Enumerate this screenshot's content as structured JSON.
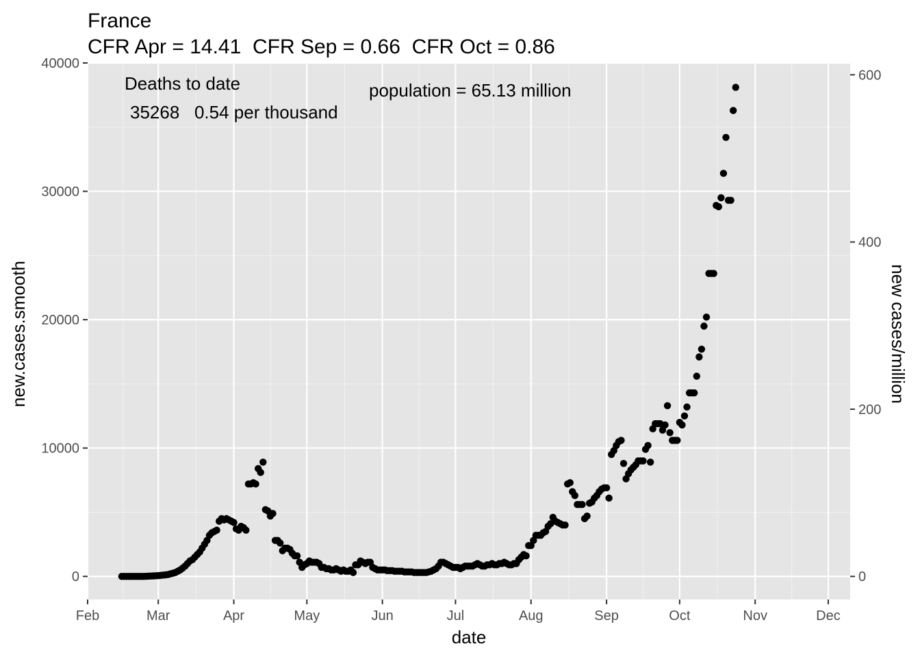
{
  "chart_data": {
    "type": "scatter",
    "title": "France",
    "subtitle": "CFR Apr = 14.41  CFR Sep = 0.66  CFR Oct = 0.86",
    "xlabel": "date",
    "ylabel": "new.cases.smooth",
    "y2label": "new cases/million",
    "annotations": {
      "deaths_heading": "Deaths to date",
      "deaths_values": "35268   0.54 per thousand",
      "population": "population = 65.13 million"
    },
    "x_axis": {
      "start": "2020-02-01",
      "end": "2020-12-10",
      "ticks": [
        "Feb",
        "Mar",
        "Apr",
        "May",
        "Jun",
        "Jul",
        "Aug",
        "Sep",
        "Oct",
        "Nov",
        "Dec"
      ],
      "tick_dates": [
        "2020-02-01",
        "2020-03-01",
        "2020-04-01",
        "2020-05-01",
        "2020-06-01",
        "2020-07-01",
        "2020-08-01",
        "2020-09-01",
        "2020-10-01",
        "2020-11-01",
        "2020-12-01"
      ]
    },
    "ylim": [
      -1800,
      40000
    ],
    "yticks": [
      0,
      10000,
      20000,
      30000,
      40000
    ],
    "y2ticks": [
      0,
      200,
      400,
      600
    ],
    "y2_conversion_per_million": 65.13,
    "grid": true,
    "background_color": "#e5e5e5",
    "point_color": "#000000",
    "points": [
      [
        "2020-02-15",
        0
      ],
      [
        "2020-02-16",
        0
      ],
      [
        "2020-02-17",
        0
      ],
      [
        "2020-02-18",
        0
      ],
      [
        "2020-02-19",
        0
      ],
      [
        "2020-02-20",
        0
      ],
      [
        "2020-02-21",
        0
      ],
      [
        "2020-02-22",
        0
      ],
      [
        "2020-02-23",
        0
      ],
      [
        "2020-02-24",
        0
      ],
      [
        "2020-02-25",
        10
      ],
      [
        "2020-02-26",
        20
      ],
      [
        "2020-02-27",
        30
      ],
      [
        "2020-02-28",
        40
      ],
      [
        "2020-02-29",
        50
      ],
      [
        "2020-03-01",
        60
      ],
      [
        "2020-03-02",
        80
      ],
      [
        "2020-03-03",
        100
      ],
      [
        "2020-03-04",
        120
      ],
      [
        "2020-03-05",
        150
      ],
      [
        "2020-03-06",
        200
      ],
      [
        "2020-03-07",
        250
      ],
      [
        "2020-03-08",
        300
      ],
      [
        "2020-03-09",
        400
      ],
      [
        "2020-03-10",
        500
      ],
      [
        "2020-03-11",
        650
      ],
      [
        "2020-03-12",
        800
      ],
      [
        "2020-03-13",
        1000
      ],
      [
        "2020-03-14",
        1200
      ],
      [
        "2020-03-15",
        1300
      ],
      [
        "2020-03-16",
        1500
      ],
      [
        "2020-03-17",
        1700
      ],
      [
        "2020-03-18",
        1900
      ],
      [
        "2020-03-19",
        2200
      ],
      [
        "2020-03-20",
        2500
      ],
      [
        "2020-03-21",
        2800
      ],
      [
        "2020-03-22",
        3200
      ],
      [
        "2020-03-23",
        3400
      ],
      [
        "2020-03-24",
        3500
      ],
      [
        "2020-03-25",
        3600
      ],
      [
        "2020-03-26",
        4300
      ],
      [
        "2020-03-27",
        4500
      ],
      [
        "2020-03-28",
        4400
      ],
      [
        "2020-03-29",
        4500
      ],
      [
        "2020-03-30",
        4400
      ],
      [
        "2020-03-31",
        4300
      ],
      [
        "2020-04-01",
        4200
      ],
      [
        "2020-04-02",
        3700
      ],
      [
        "2020-04-03",
        3600
      ],
      [
        "2020-04-04",
        3900
      ],
      [
        "2020-04-05",
        3800
      ],
      [
        "2020-04-06",
        3600
      ],
      [
        "2020-04-07",
        7200
      ],
      [
        "2020-04-08",
        7200
      ],
      [
        "2020-04-09",
        7300
      ],
      [
        "2020-04-10",
        7200
      ],
      [
        "2020-04-11",
        8400
      ],
      [
        "2020-04-12",
        8100
      ],
      [
        "2020-04-13",
        8900
      ],
      [
        "2020-04-14",
        5200
      ],
      [
        "2020-04-15",
        5100
      ],
      [
        "2020-04-16",
        4700
      ],
      [
        "2020-04-17",
        4900
      ],
      [
        "2020-04-18",
        2800
      ],
      [
        "2020-04-19",
        2800
      ],
      [
        "2020-04-20",
        2600
      ],
      [
        "2020-04-21",
        2000
      ],
      [
        "2020-04-22",
        2200
      ],
      [
        "2020-04-23",
        2200
      ],
      [
        "2020-04-24",
        2100
      ],
      [
        "2020-04-25",
        1800
      ],
      [
        "2020-04-26",
        1600
      ],
      [
        "2020-04-27",
        1600
      ],
      [
        "2020-04-28",
        1100
      ],
      [
        "2020-04-29",
        700
      ],
      [
        "2020-04-30",
        900
      ],
      [
        "2020-05-01",
        1000
      ],
      [
        "2020-05-02",
        1200
      ],
      [
        "2020-05-03",
        1100
      ],
      [
        "2020-05-04",
        1100
      ],
      [
        "2020-05-05",
        1100
      ],
      [
        "2020-05-06",
        1000
      ],
      [
        "2020-05-07",
        700
      ],
      [
        "2020-05-08",
        700
      ],
      [
        "2020-05-09",
        600
      ],
      [
        "2020-05-10",
        600
      ],
      [
        "2020-05-11",
        500
      ],
      [
        "2020-05-12",
        500
      ],
      [
        "2020-05-13",
        600
      ],
      [
        "2020-05-14",
        500
      ],
      [
        "2020-05-15",
        400
      ],
      [
        "2020-05-16",
        500
      ],
      [
        "2020-05-17",
        400
      ],
      [
        "2020-05-18",
        400
      ],
      [
        "2020-05-19",
        500
      ],
      [
        "2020-05-20",
        300
      ],
      [
        "2020-05-21",
        900
      ],
      [
        "2020-05-22",
        900
      ],
      [
        "2020-05-23",
        1200
      ],
      [
        "2020-05-24",
        1100
      ],
      [
        "2020-05-25",
        1000
      ],
      [
        "2020-05-26",
        1100
      ],
      [
        "2020-05-27",
        1100
      ],
      [
        "2020-05-28",
        700
      ],
      [
        "2020-05-29",
        600
      ],
      [
        "2020-05-30",
        500
      ],
      [
        "2020-05-31",
        500
      ],
      [
        "2020-06-01",
        500
      ],
      [
        "2020-06-02",
        500
      ],
      [
        "2020-06-03",
        450
      ],
      [
        "2020-06-04",
        450
      ],
      [
        "2020-06-05",
        450
      ],
      [
        "2020-06-06",
        400
      ],
      [
        "2020-06-07",
        400
      ],
      [
        "2020-06-08",
        400
      ],
      [
        "2020-06-09",
        400
      ],
      [
        "2020-06-10",
        350
      ],
      [
        "2020-06-11",
        350
      ],
      [
        "2020-06-12",
        350
      ],
      [
        "2020-06-13",
        350
      ],
      [
        "2020-06-14",
        300
      ],
      [
        "2020-06-15",
        300
      ],
      [
        "2020-06-16",
        300
      ],
      [
        "2020-06-17",
        300
      ],
      [
        "2020-06-18",
        300
      ],
      [
        "2020-06-19",
        300
      ],
      [
        "2020-06-20",
        350
      ],
      [
        "2020-06-21",
        400
      ],
      [
        "2020-06-22",
        500
      ],
      [
        "2020-06-23",
        600
      ],
      [
        "2020-06-24",
        800
      ],
      [
        "2020-06-25",
        1100
      ],
      [
        "2020-06-26",
        1100
      ],
      [
        "2020-06-27",
        1000
      ],
      [
        "2020-06-28",
        900
      ],
      [
        "2020-06-29",
        800
      ],
      [
        "2020-06-30",
        700
      ],
      [
        "2020-07-01",
        700
      ],
      [
        "2020-07-02",
        700
      ],
      [
        "2020-07-03",
        600
      ],
      [
        "2020-07-04",
        700
      ],
      [
        "2020-07-05",
        800
      ],
      [
        "2020-07-06",
        800
      ],
      [
        "2020-07-07",
        800
      ],
      [
        "2020-07-08",
        800
      ],
      [
        "2020-07-09",
        900
      ],
      [
        "2020-07-10",
        1000
      ],
      [
        "2020-07-11",
        900
      ],
      [
        "2020-07-12",
        800
      ],
      [
        "2020-07-13",
        800
      ],
      [
        "2020-07-14",
        900
      ],
      [
        "2020-07-15",
        900
      ],
      [
        "2020-07-16",
        1000
      ],
      [
        "2020-07-17",
        900
      ],
      [
        "2020-07-18",
        900
      ],
      [
        "2020-07-19",
        1000
      ],
      [
        "2020-07-20",
        1000
      ],
      [
        "2020-07-21",
        1100
      ],
      [
        "2020-07-22",
        1000
      ],
      [
        "2020-07-23",
        900
      ],
      [
        "2020-07-24",
        900
      ],
      [
        "2020-07-25",
        1000
      ],
      [
        "2020-07-26",
        1000
      ],
      [
        "2020-07-27",
        1300
      ],
      [
        "2020-07-28",
        1500
      ],
      [
        "2020-07-29",
        1700
      ],
      [
        "2020-07-30",
        1600
      ],
      [
        "2020-07-31",
        2400
      ],
      [
        "2020-08-01",
        2400
      ],
      [
        "2020-08-02",
        2800
      ],
      [
        "2020-08-03",
        3200
      ],
      [
        "2020-08-04",
        3200
      ],
      [
        "2020-08-05",
        3200
      ],
      [
        "2020-08-06",
        3400
      ],
      [
        "2020-08-07",
        3500
      ],
      [
        "2020-08-08",
        3900
      ],
      [
        "2020-08-09",
        4100
      ],
      [
        "2020-08-10",
        4600
      ],
      [
        "2020-08-11",
        4300
      ],
      [
        "2020-08-12",
        4200
      ],
      [
        "2020-08-13",
        4100
      ],
      [
        "2020-08-14",
        4000
      ],
      [
        "2020-08-15",
        4000
      ],
      [
        "2020-08-16",
        7200
      ],
      [
        "2020-08-17",
        7300
      ],
      [
        "2020-08-18",
        6600
      ],
      [
        "2020-08-19",
        6300
      ],
      [
        "2020-08-20",
        5600
      ],
      [
        "2020-08-21",
        5600
      ],
      [
        "2020-08-22",
        5600
      ],
      [
        "2020-08-23",
        4500
      ],
      [
        "2020-08-24",
        4700
      ],
      [
        "2020-08-25",
        5700
      ],
      [
        "2020-08-26",
        5800
      ],
      [
        "2020-08-27",
        6100
      ],
      [
        "2020-08-28",
        6300
      ],
      [
        "2020-08-29",
        6600
      ],
      [
        "2020-08-30",
        6800
      ],
      [
        "2020-08-31",
        6900
      ],
      [
        "2020-09-01",
        6900
      ],
      [
        "2020-09-02",
        6100
      ],
      [
        "2020-09-03",
        9500
      ],
      [
        "2020-09-04",
        9800
      ],
      [
        "2020-09-05",
        10200
      ],
      [
        "2020-09-06",
        10500
      ],
      [
        "2020-09-07",
        10600
      ],
      [
        "2020-09-08",
        8800
      ],
      [
        "2020-09-09",
        7600
      ],
      [
        "2020-09-10",
        8000
      ],
      [
        "2020-09-11",
        8300
      ],
      [
        "2020-09-12",
        8500
      ],
      [
        "2020-09-13",
        8700
      ],
      [
        "2020-09-14",
        9000
      ],
      [
        "2020-09-15",
        9000
      ],
      [
        "2020-09-16",
        9000
      ],
      [
        "2020-09-17",
        9900
      ],
      [
        "2020-09-18",
        10200
      ],
      [
        "2020-09-19",
        8900
      ],
      [
        "2020-09-20",
        11500
      ],
      [
        "2020-09-21",
        11900
      ],
      [
        "2020-09-22",
        11900
      ],
      [
        "2020-09-23",
        11900
      ],
      [
        "2020-09-24",
        11400
      ],
      [
        "2020-09-25",
        11800
      ],
      [
        "2020-09-26",
        13300
      ],
      [
        "2020-09-27",
        11200
      ],
      [
        "2020-09-28",
        10600
      ],
      [
        "2020-09-29",
        10600
      ],
      [
        "2020-09-30",
        10600
      ],
      [
        "2020-10-01",
        12000
      ],
      [
        "2020-10-02",
        11800
      ],
      [
        "2020-10-03",
        12500
      ],
      [
        "2020-10-04",
        13200
      ],
      [
        "2020-10-05",
        14300
      ],
      [
        "2020-10-06",
        14300
      ],
      [
        "2020-10-07",
        14300
      ],
      [
        "2020-10-08",
        15600
      ],
      [
        "2020-10-09",
        17100
      ],
      [
        "2020-10-10",
        17700
      ],
      [
        "2020-10-11",
        19500
      ],
      [
        "2020-10-12",
        20200
      ],
      [
        "2020-10-13",
        23600
      ],
      [
        "2020-10-14",
        23600
      ],
      [
        "2020-10-15",
        23600
      ],
      [
        "2020-10-16",
        28900
      ],
      [
        "2020-10-17",
        28800
      ],
      [
        "2020-10-18",
        29500
      ],
      [
        "2020-10-19",
        31400
      ],
      [
        "2020-10-20",
        34200
      ],
      [
        "2020-10-21",
        29300
      ],
      [
        "2020-10-22",
        29300
      ],
      [
        "2020-10-23",
        36300
      ],
      [
        "2020-10-24",
        38100
      ]
    ]
  }
}
